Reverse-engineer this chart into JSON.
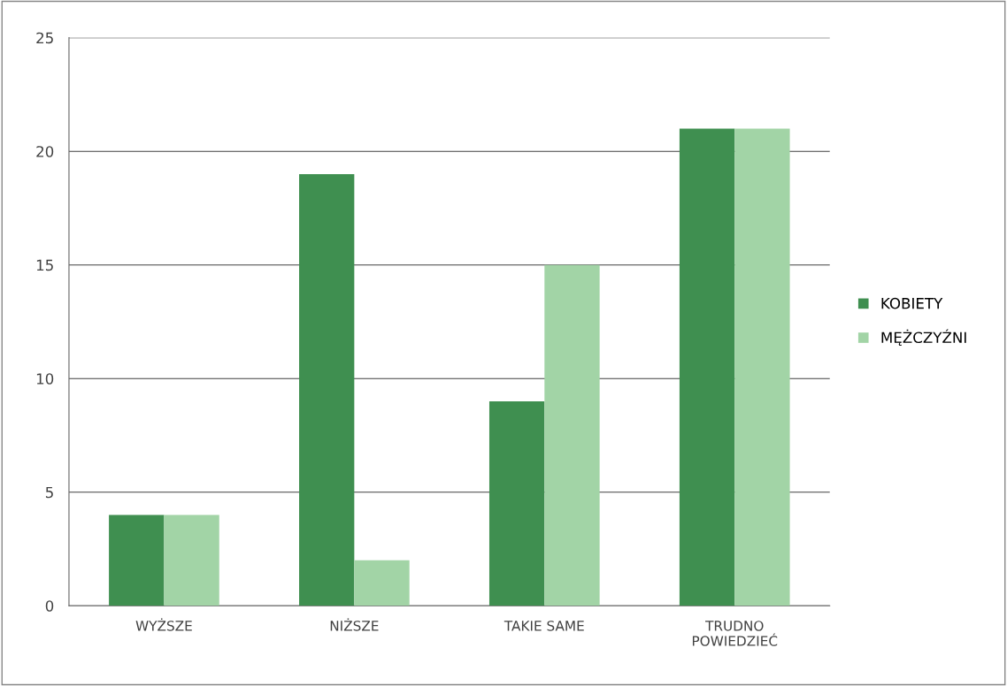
{
  "chart_data": {
    "type": "bar",
    "categories": [
      "WYŻSZE",
      "NIŻSZE",
      "TAKIE SAME",
      "TRUDNO\nPOWIEDZIEĆ"
    ],
    "series": [
      {
        "name": "KOBIETY",
        "color": "#3f8f50",
        "values": [
          4,
          19,
          9,
          21
        ]
      },
      {
        "name": "MĘŻCZYŹNI",
        "color": "#a2d4a6",
        "values": [
          4,
          2,
          15,
          21
        ]
      }
    ],
    "ylim": [
      0,
      25
    ],
    "yticks": [
      0,
      5,
      10,
      15,
      20,
      25
    ],
    "grid": "y",
    "legend": "right"
  }
}
